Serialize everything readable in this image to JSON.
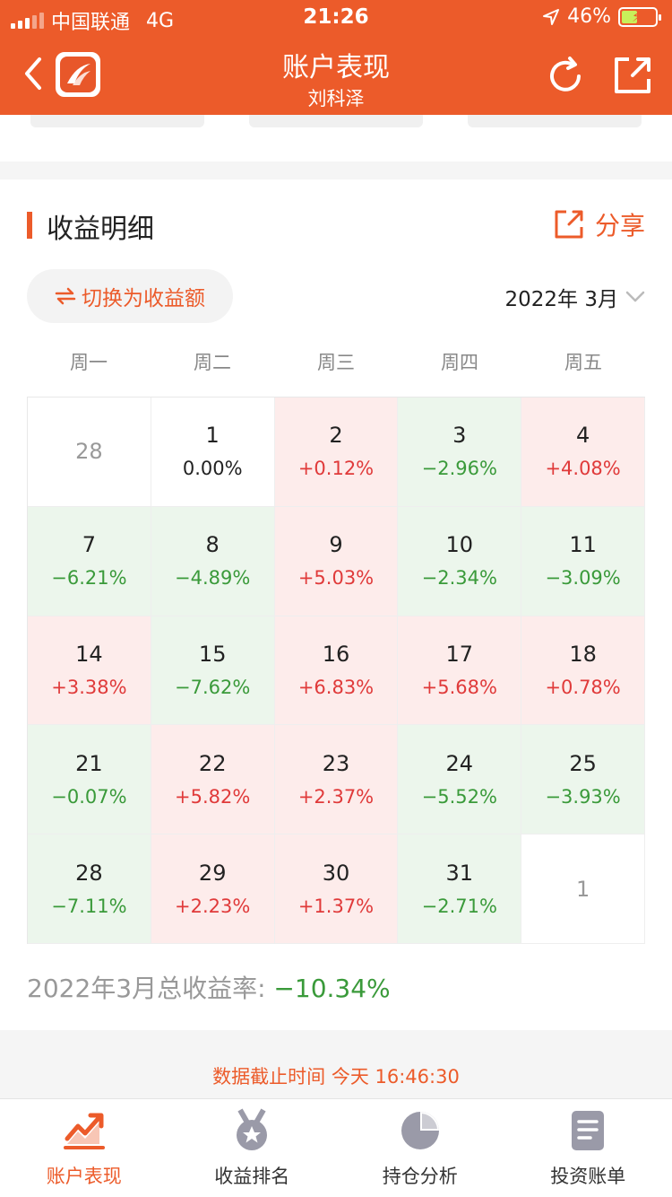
{
  "status_bar": {
    "carrier": "中国联通",
    "network": "4G",
    "time": "21:26",
    "battery": "46%"
  },
  "nav": {
    "title": "账户表现",
    "subtitle": "刘科泽",
    "icons": [
      "back-icon",
      "app-logo",
      "refresh-icon",
      "share-external-icon"
    ]
  },
  "section": {
    "title": "收益明细",
    "share_label": "分享",
    "switch_label": "切换为收益额",
    "month_label": "2022年 3月"
  },
  "weekdays": [
    "周一",
    "周二",
    "周三",
    "周四",
    "周五"
  ],
  "calendar": [
    {
      "day": "28",
      "pct": "",
      "state": "other"
    },
    {
      "day": "1",
      "pct": "0.00%",
      "state": "flat"
    },
    {
      "day": "2",
      "pct": "+0.12%",
      "state": "up"
    },
    {
      "day": "3",
      "pct": "−2.96%",
      "state": "down"
    },
    {
      "day": "4",
      "pct": "+4.08%",
      "state": "up"
    },
    {
      "day": "7",
      "pct": "−6.21%",
      "state": "down"
    },
    {
      "day": "8",
      "pct": "−4.89%",
      "state": "down"
    },
    {
      "day": "9",
      "pct": "+5.03%",
      "state": "up"
    },
    {
      "day": "10",
      "pct": "−2.34%",
      "state": "down"
    },
    {
      "day": "11",
      "pct": "−3.09%",
      "state": "down"
    },
    {
      "day": "14",
      "pct": "+3.38%",
      "state": "up"
    },
    {
      "day": "15",
      "pct": "−7.62%",
      "state": "down"
    },
    {
      "day": "16",
      "pct": "+6.83%",
      "state": "up"
    },
    {
      "day": "17",
      "pct": "+5.68%",
      "state": "up"
    },
    {
      "day": "18",
      "pct": "+0.78%",
      "state": "up"
    },
    {
      "day": "21",
      "pct": "−0.07%",
      "state": "down"
    },
    {
      "day": "22",
      "pct": "+5.82%",
      "state": "up"
    },
    {
      "day": "23",
      "pct": "+2.37%",
      "state": "up"
    },
    {
      "day": "24",
      "pct": "−5.52%",
      "state": "down"
    },
    {
      "day": "25",
      "pct": "−3.93%",
      "state": "down"
    },
    {
      "day": "28",
      "pct": "−7.11%",
      "state": "down"
    },
    {
      "day": "29",
      "pct": "+2.23%",
      "state": "up"
    },
    {
      "day": "30",
      "pct": "+1.37%",
      "state": "up"
    },
    {
      "day": "31",
      "pct": "−2.71%",
      "state": "down"
    },
    {
      "day": "1",
      "pct": "",
      "state": "other"
    }
  ],
  "summary": {
    "label": "2022年3月总收益率: ",
    "value": "−10.34%"
  },
  "update_time": "数据截止时间 今天 16:46:30",
  "tabs": [
    {
      "label": "账户表现",
      "icon": "trend-chart-icon",
      "active": true
    },
    {
      "label": "收益排名",
      "icon": "medal-icon",
      "active": false
    },
    {
      "label": "持仓分析",
      "icon": "pie-chart-icon",
      "active": false
    },
    {
      "label": "投资账单",
      "icon": "bill-icon",
      "active": false
    }
  ],
  "colors": {
    "brand": "#ec5b2a",
    "up": "#e03a3a",
    "down": "#3a9a3a",
    "up_bg": "#fdeceb",
    "down_bg": "#ecf6ec"
  }
}
